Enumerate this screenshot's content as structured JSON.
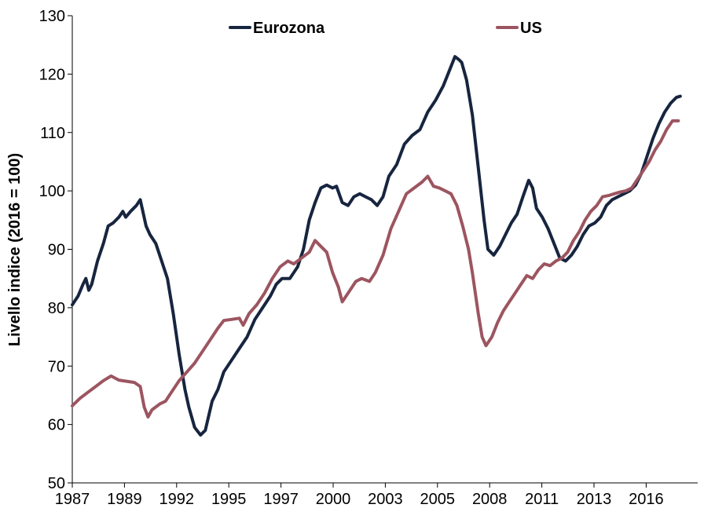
{
  "chart_data": {
    "type": "line",
    "title": "",
    "xlabel": "",
    "ylabel": "Livello indice (2016 = 100)",
    "xlim": [
      1987.0,
      2019.2
    ],
    "ylim": [
      50,
      130
    ],
    "y_ticks": [
      50,
      60,
      70,
      80,
      90,
      100,
      110,
      120,
      130
    ],
    "x_tick_labels": [
      "1987",
      "1989",
      "1992",
      "1995",
      "1997",
      "2000",
      "2003",
      "2005",
      "2008",
      "2011",
      "2013",
      "2016"
    ],
    "grid": false,
    "legend_position": "top",
    "series": [
      {
        "name": "Eurozona",
        "color": "#17253f",
        "points": [
          [
            1987.0,
            80.5
          ],
          [
            1987.3,
            82
          ],
          [
            1987.55,
            84
          ],
          [
            1987.7,
            85
          ],
          [
            1987.85,
            83
          ],
          [
            1988.0,
            84
          ],
          [
            1988.3,
            88
          ],
          [
            1988.6,
            91
          ],
          [
            1988.85,
            94
          ],
          [
            1989.1,
            94.5
          ],
          [
            1989.4,
            95.5
          ],
          [
            1989.6,
            96.5
          ],
          [
            1989.75,
            95.5
          ],
          [
            1990.0,
            96.5
          ],
          [
            1990.3,
            97.5
          ],
          [
            1990.5,
            98.5
          ],
          [
            1990.8,
            94
          ],
          [
            1991.0,
            92.5
          ],
          [
            1991.3,
            91
          ],
          [
            1991.6,
            88
          ],
          [
            1991.9,
            85
          ],
          [
            1992.2,
            79
          ],
          [
            1992.5,
            72
          ],
          [
            1992.8,
            66
          ],
          [
            1993.0,
            63
          ],
          [
            1993.3,
            59.5
          ],
          [
            1993.6,
            58.2
          ],
          [
            1993.85,
            59
          ],
          [
            1994.2,
            64
          ],
          [
            1994.5,
            66
          ],
          [
            1994.8,
            69
          ],
          [
            1995.2,
            71
          ],
          [
            1995.6,
            73
          ],
          [
            1996.0,
            75
          ],
          [
            1996.4,
            78
          ],
          [
            1996.8,
            80
          ],
          [
            1997.2,
            82
          ],
          [
            1997.5,
            84
          ],
          [
            1997.8,
            85
          ],
          [
            1998.2,
            85
          ],
          [
            1998.6,
            87
          ],
          [
            1998.9,
            90
          ],
          [
            1999.2,
            95
          ],
          [
            1999.5,
            98
          ],
          [
            1999.8,
            100.5
          ],
          [
            2000.1,
            101
          ],
          [
            2000.4,
            100.5
          ],
          [
            2000.6,
            100.8
          ],
          [
            2000.9,
            98
          ],
          [
            2001.2,
            97.5
          ],
          [
            2001.5,
            99
          ],
          [
            2001.8,
            99.5
          ],
          [
            2002.1,
            99
          ],
          [
            2002.4,
            98.5
          ],
          [
            2002.7,
            97.5
          ],
          [
            2003.0,
            99
          ],
          [
            2003.3,
            102.5
          ],
          [
            2003.7,
            104.5
          ],
          [
            2004.1,
            108
          ],
          [
            2004.5,
            109.5
          ],
          [
            2004.9,
            110.5
          ],
          [
            2005.3,
            113.5
          ],
          [
            2005.7,
            115.5
          ],
          [
            2006.1,
            118
          ],
          [
            2006.4,
            120.5
          ],
          [
            2006.7,
            123
          ],
          [
            2006.9,
            122.5
          ],
          [
            2007.05,
            122
          ],
          [
            2007.3,
            119
          ],
          [
            2007.6,
            113
          ],
          [
            2007.9,
            104
          ],
          [
            2008.2,
            95
          ],
          [
            2008.4,
            90
          ],
          [
            2008.7,
            89
          ],
          [
            2009.0,
            90.5
          ],
          [
            2009.3,
            92.5
          ],
          [
            2009.6,
            94.5
          ],
          [
            2009.9,
            96
          ],
          [
            2010.2,
            99
          ],
          [
            2010.5,
            101.8
          ],
          [
            2010.7,
            100.5
          ],
          [
            2010.9,
            97
          ],
          [
            2011.2,
            95.5
          ],
          [
            2011.5,
            93.5
          ],
          [
            2011.8,
            91
          ],
          [
            2012.1,
            88.5
          ],
          [
            2012.4,
            88
          ],
          [
            2012.7,
            89
          ],
          [
            2013.0,
            90.5
          ],
          [
            2013.3,
            92.5
          ],
          [
            2013.6,
            94
          ],
          [
            2013.9,
            94.5
          ],
          [
            2014.2,
            95.5
          ],
          [
            2014.5,
            97.5
          ],
          [
            2014.8,
            98.5
          ],
          [
            2015.1,
            99
          ],
          [
            2015.4,
            99.5
          ],
          [
            2015.7,
            100
          ],
          [
            2016.0,
            101
          ],
          [
            2016.3,
            103
          ],
          [
            2016.6,
            106
          ],
          [
            2016.9,
            109
          ],
          [
            2017.2,
            111.5
          ],
          [
            2017.5,
            113.5
          ],
          [
            2017.8,
            115
          ],
          [
            2018.1,
            116
          ],
          [
            2018.3,
            116.2
          ]
        ]
      },
      {
        "name": "US",
        "color": "#9c5560",
        "points": [
          [
            1987.0,
            63.2
          ],
          [
            1987.4,
            64.5
          ],
          [
            1987.8,
            65.5
          ],
          [
            1988.2,
            66.5
          ],
          [
            1988.6,
            67.5
          ],
          [
            1989.0,
            68.3
          ],
          [
            1989.4,
            67.6
          ],
          [
            1989.8,
            67.4
          ],
          [
            1990.2,
            67.2
          ],
          [
            1990.5,
            66.5
          ],
          [
            1990.7,
            63
          ],
          [
            1990.9,
            61.3
          ],
          [
            1991.1,
            62.5
          ],
          [
            1991.5,
            63.5
          ],
          [
            1991.8,
            64
          ],
          [
            1992.1,
            65.5
          ],
          [
            1992.5,
            67.5
          ],
          [
            1992.9,
            69
          ],
          [
            1993.3,
            70.5
          ],
          [
            1993.7,
            72.5
          ],
          [
            1994.1,
            74.5
          ],
          [
            1994.5,
            76.5
          ],
          [
            1994.8,
            77.8
          ],
          [
            1995.2,
            78
          ],
          [
            1995.6,
            78.2
          ],
          [
            1995.8,
            77
          ],
          [
            1996.1,
            79
          ],
          [
            1996.5,
            80.5
          ],
          [
            1996.9,
            82.5
          ],
          [
            1997.3,
            85
          ],
          [
            1997.7,
            87
          ],
          [
            1998.1,
            88
          ],
          [
            1998.4,
            87.5
          ],
          [
            1998.8,
            88.5
          ],
          [
            1999.2,
            89.5
          ],
          [
            1999.5,
            91.5
          ],
          [
            1999.8,
            90.5
          ],
          [
            2000.1,
            89.5
          ],
          [
            2000.4,
            86
          ],
          [
            2000.7,
            83.5
          ],
          [
            2000.9,
            81
          ],
          [
            2001.2,
            82.5
          ],
          [
            2001.6,
            84.5
          ],
          [
            2001.9,
            85
          ],
          [
            2002.3,
            84.5
          ],
          [
            2002.6,
            86
          ],
          [
            2003.0,
            89
          ],
          [
            2003.4,
            93.5
          ],
          [
            2003.8,
            96.5
          ],
          [
            2004.2,
            99.5
          ],
          [
            2004.6,
            100.5
          ],
          [
            2005.0,
            101.5
          ],
          [
            2005.3,
            102.5
          ],
          [
            2005.6,
            100.8
          ],
          [
            2005.9,
            100.5
          ],
          [
            2006.2,
            100
          ],
          [
            2006.5,
            99.5
          ],
          [
            2006.8,
            97.5
          ],
          [
            2007.1,
            94
          ],
          [
            2007.4,
            90
          ],
          [
            2007.6,
            86
          ],
          [
            2007.9,
            79
          ],
          [
            2008.1,
            75
          ],
          [
            2008.3,
            73.5
          ],
          [
            2008.6,
            75
          ],
          [
            2008.9,
            77.5
          ],
          [
            2009.2,
            79.5
          ],
          [
            2009.5,
            81
          ],
          [
            2009.8,
            82.5
          ],
          [
            2010.1,
            84
          ],
          [
            2010.4,
            85.5
          ],
          [
            2010.7,
            85
          ],
          [
            2011.0,
            86.5
          ],
          [
            2011.3,
            87.5
          ],
          [
            2011.6,
            87.2
          ],
          [
            2011.9,
            88
          ],
          [
            2012.2,
            88.5
          ],
          [
            2012.5,
            89.5
          ],
          [
            2012.8,
            91.5
          ],
          [
            2013.1,
            93
          ],
          [
            2013.4,
            95
          ],
          [
            2013.7,
            96.5
          ],
          [
            2014.0,
            97.5
          ],
          [
            2014.3,
            99
          ],
          [
            2014.6,
            99.2
          ],
          [
            2014.9,
            99.5
          ],
          [
            2015.2,
            99.8
          ],
          [
            2015.5,
            100
          ],
          [
            2015.8,
            100.5
          ],
          [
            2016.1,
            102
          ],
          [
            2016.4,
            103.5
          ],
          [
            2016.7,
            105
          ],
          [
            2017.0,
            107
          ],
          [
            2017.3,
            108.5
          ],
          [
            2017.6,
            110.5
          ],
          [
            2017.9,
            112
          ],
          [
            2018.2,
            112
          ]
        ]
      }
    ]
  }
}
